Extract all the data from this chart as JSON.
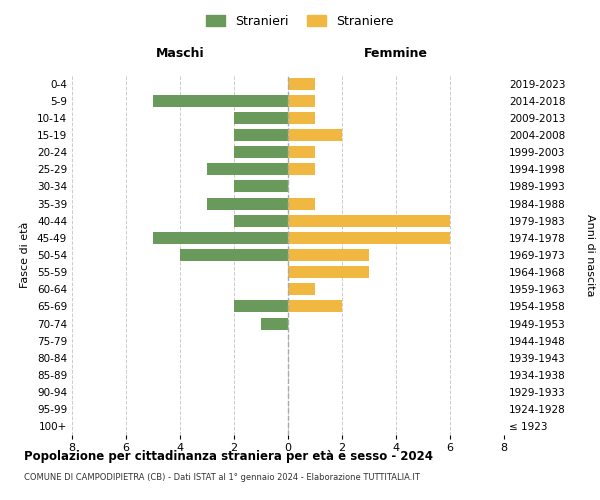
{
  "age_groups": [
    "0-4",
    "5-9",
    "10-14",
    "15-19",
    "20-24",
    "25-29",
    "30-34",
    "35-39",
    "40-44",
    "45-49",
    "50-54",
    "55-59",
    "60-64",
    "65-69",
    "70-74",
    "75-79",
    "80-84",
    "85-89",
    "90-94",
    "95-99",
    "100+"
  ],
  "birth_years": [
    "2019-2023",
    "2014-2018",
    "2009-2013",
    "2004-2008",
    "1999-2003",
    "1994-1998",
    "1989-1993",
    "1984-1988",
    "1979-1983",
    "1974-1978",
    "1969-1973",
    "1964-1968",
    "1959-1963",
    "1954-1958",
    "1949-1953",
    "1944-1948",
    "1939-1943",
    "1934-1938",
    "1929-1933",
    "1924-1928",
    "≤ 1923"
  ],
  "maschi": [
    0,
    5,
    2,
    2,
    2,
    3,
    2,
    3,
    2,
    5,
    4,
    0,
    0,
    2,
    1,
    0,
    0,
    0,
    0,
    0,
    0
  ],
  "femmine": [
    1,
    1,
    1,
    2,
    1,
    1,
    0,
    1,
    6,
    6,
    3,
    3,
    1,
    2,
    0,
    0,
    0,
    0,
    0,
    0,
    0
  ],
  "maschi_color": "#6a9a5b",
  "femmine_color": "#f0b840",
  "title": "Popolazione per cittadinanza straniera per età e sesso - 2024",
  "subtitle": "COMUNE DI CAMPODIPIETRA (CB) - Dati ISTAT al 1° gennaio 2024 - Elaborazione TUTTITALIA.IT",
  "xlabel_left": "Maschi",
  "xlabel_right": "Femmine",
  "ylabel_left": "Fasce di età",
  "ylabel_right": "Anni di nascita",
  "legend_stranieri": "Stranieri",
  "legend_straniere": "Straniere",
  "xlim": 8,
  "background_color": "#ffffff",
  "grid_color": "#cccccc"
}
